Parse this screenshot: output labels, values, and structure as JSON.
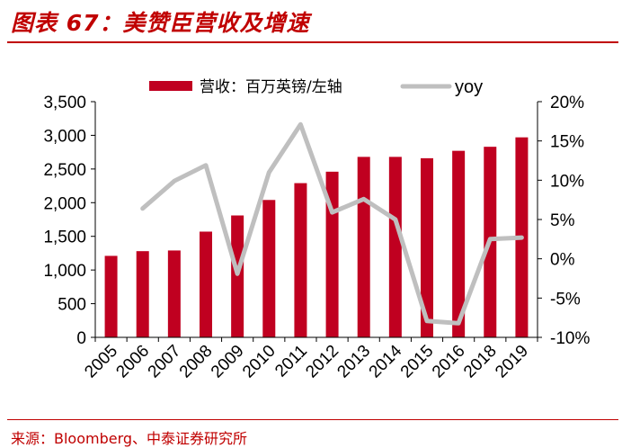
{
  "header": {
    "title": "图表 67：美赞臣营收及增速"
  },
  "footer": {
    "source": "来源：Bloomberg、中泰证券研究所"
  },
  "colors": {
    "accent": "#c00000",
    "bar": "#c00020",
    "line": "#bfbfbf",
    "axis": "#000000"
  },
  "chart_data": {
    "type": "bar",
    "title": "美赞臣营收及增速",
    "categories": [
      "2005",
      "2006",
      "2007",
      "2008",
      "2009",
      "2010",
      "2011",
      "2012",
      "2013",
      "2014",
      "2015",
      "2016",
      "2018",
      "2019"
    ],
    "series": [
      {
        "name": "营收：百万英镑/左轴",
        "type": "bar",
        "axis": "left",
        "values": [
          1210,
          1280,
          1290,
          1570,
          1810,
          2040,
          2290,
          2460,
          2680,
          2680,
          2660,
          2770,
          2830,
          2970
        ]
      },
      {
        "name": "yoy",
        "type": "line",
        "axis": "right",
        "values": [
          null,
          6.4,
          9.9,
          11.9,
          -1.9,
          11.0,
          17.1,
          5.9,
          7.6,
          5.0,
          -7.9,
          -8.2,
          2.5,
          2.7
        ]
      }
    ],
    "left_axis": {
      "ylim": [
        0,
        3500
      ],
      "ticks": [
        "0",
        "500",
        "1,000",
        "1,500",
        "2,000",
        "2,500",
        "3,000",
        "3,500"
      ]
    },
    "right_axis": {
      "ylim": [
        -10,
        20
      ],
      "ticks": [
        "-10%",
        "-5%",
        "0%",
        "5%",
        "10%",
        "15%",
        "20%"
      ]
    },
    "legend": {
      "position": "top",
      "entries": [
        "营收：百万英镑/左轴",
        "yoy"
      ]
    },
    "grid": false
  }
}
